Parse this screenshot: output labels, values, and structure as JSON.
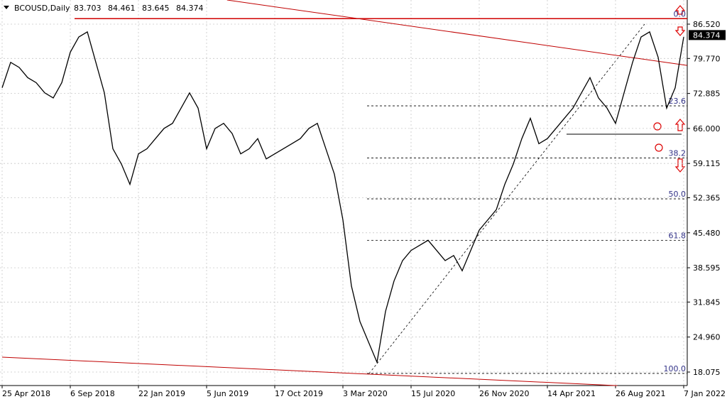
{
  "chart_data": {
    "type": "line",
    "symbol": "BCOUSD,Daily",
    "ohlc": [
      83.703,
      84.461,
      83.645,
      84.374
    ],
    "categories": [
      "25 Apr 2018",
      null,
      null,
      null,
      null,
      null,
      null,
      null,
      "6 Sep 2018",
      null,
      null,
      null,
      null,
      null,
      null,
      null,
      "22 Jan 2019",
      null,
      null,
      null,
      null,
      null,
      null,
      null,
      "5 Jun 2019",
      null,
      null,
      null,
      null,
      null,
      null,
      null,
      "17 Oct 2019",
      null,
      null,
      null,
      null,
      null,
      null,
      null,
      "3 Mar 2020",
      null,
      null,
      null,
      null,
      null,
      null,
      null,
      "15 Jul 2020",
      null,
      null,
      null,
      null,
      null,
      null,
      null,
      "26 Nov 2020",
      null,
      null,
      null,
      null,
      null,
      null,
      null,
      "14 Apr 2021",
      null,
      null,
      null,
      null,
      null,
      null,
      null,
      "26 Aug 2021",
      null,
      null,
      null,
      null,
      null,
      null,
      null,
      "7 Jan 2022"
    ],
    "series": [
      {
        "name": "BCOUSD",
        "color": "#000000",
        "values": [
          74,
          79,
          78,
          76,
          75,
          73,
          72,
          75,
          81,
          84,
          85,
          79,
          73,
          62,
          59,
          55,
          61,
          62,
          64,
          66,
          67,
          70,
          73,
          70,
          62,
          66,
          67,
          65,
          61,
          62,
          64,
          60,
          61,
          62,
          63,
          64,
          66,
          67,
          62,
          57,
          48,
          35,
          28,
          24,
          20,
          30,
          36,
          40,
          42,
          43,
          44,
          42,
          40,
          41,
          38,
          42,
          46,
          48,
          50,
          55,
          59,
          64,
          68,
          63,
          64,
          66,
          68,
          70,
          73,
          76,
          72,
          70,
          67,
          73,
          79,
          84,
          85,
          80,
          70,
          74,
          84
        ]
      }
    ],
    "ylim": [
      15.42,
      91.27
    ],
    "yticks": [
      {
        "value": 86.52,
        "label": "86.520"
      },
      {
        "value": 79.77,
        "label": "79.770"
      },
      {
        "value": 72.885,
        "label": "72.885"
      },
      {
        "value": 66.0,
        "label": "66.000"
      },
      {
        "value": 59.115,
        "label": "59.115"
      },
      {
        "value": 52.365,
        "label": "52.365"
      },
      {
        "value": 45.48,
        "label": "45.480"
      },
      {
        "value": 38.595,
        "label": "38.595"
      },
      {
        "value": 31.845,
        "label": "31.845"
      },
      {
        "value": 24.96,
        "label": "24.960"
      },
      {
        "value": 18.075,
        "label": "18.075"
      }
    ],
    "grid": true,
    "fib_levels": [
      {
        "label": "0.0",
        "value": 87.6
      },
      {
        "label": "23.6",
        "value": 70.45
      },
      {
        "label": "38.2",
        "value": 60.2
      },
      {
        "label": "50.0",
        "value": 52.15
      },
      {
        "label": "61.8",
        "value": 44.0
      },
      {
        "label": "100.0",
        "value": 17.8
      }
    ],
    "support": 64.87,
    "resistance": 87.6,
    "trendlines": [
      {
        "start": [
          26.4,
          91.27
        ],
        "end": [
          80.4,
          78.4
        ]
      },
      {
        "start": [
          0,
          21.0
        ],
        "end": [
          72.2,
          15.4
        ]
      }
    ]
  }
}
